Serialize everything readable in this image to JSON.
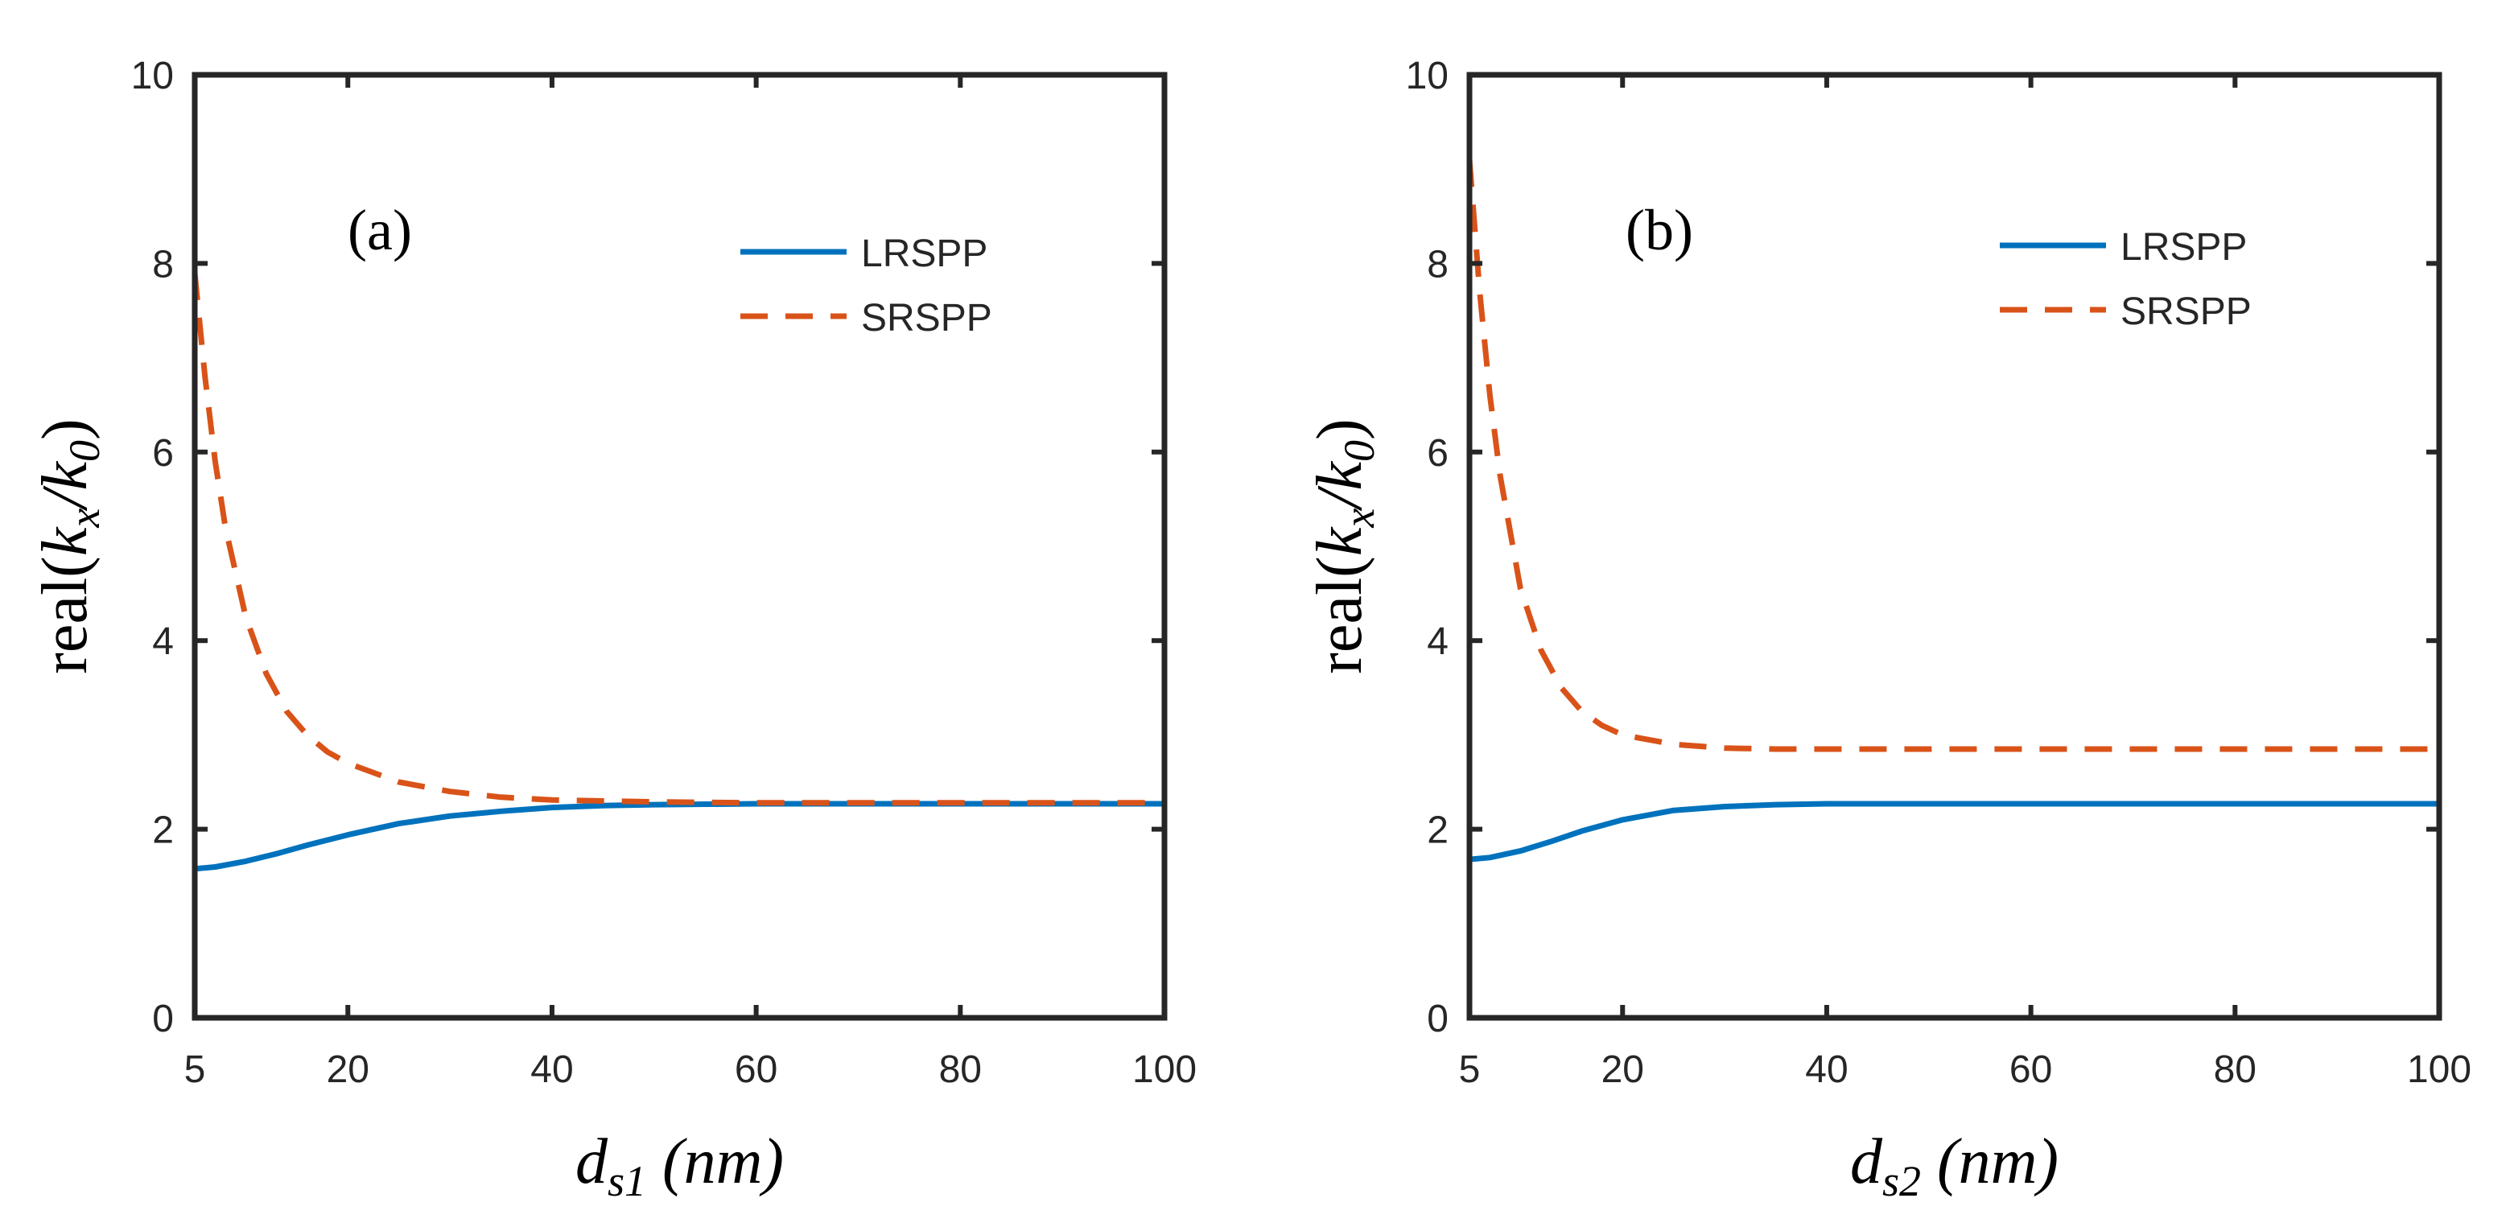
{
  "chart_data": [
    {
      "type": "line",
      "panel_label": "(a)",
      "xlabel": {
        "base": "d",
        "sub": "s1",
        "units": "(nm)"
      },
      "ylabel": {
        "prefix": "real(",
        "num": "k",
        "num_sub": "x",
        "slash": "/",
        "den": "k",
        "den_sub": "0",
        "suffix": ")"
      },
      "xlim": [
        5,
        100
      ],
      "ylim": [
        0,
        10
      ],
      "xticks": [
        5,
        20,
        40,
        60,
        80,
        100
      ],
      "yticks": [
        0,
        2,
        4,
        6,
        8,
        10
      ],
      "legend_position": "top-right",
      "series": [
        {
          "name": "LRSPP",
          "color": "#0072BD",
          "style": "solid",
          "x": [
            5,
            7,
            10,
            13,
            16,
            20,
            25,
            30,
            35,
            40,
            45,
            50,
            60,
            70,
            80,
            90,
            100
          ],
          "y": [
            1.58,
            1.6,
            1.66,
            1.74,
            1.83,
            1.94,
            2.06,
            2.14,
            2.19,
            2.23,
            2.25,
            2.26,
            2.27,
            2.27,
            2.27,
            2.27,
            2.27
          ]
        },
        {
          "name": "SRSPP",
          "color": "#D95319",
          "style": "dashed",
          "x": [
            5,
            6,
            7,
            8,
            10,
            12,
            14,
            16,
            18,
            20,
            25,
            30,
            35,
            40,
            50,
            60,
            70,
            80,
            90,
            100
          ],
          "y": [
            7.9,
            6.8,
            5.9,
            5.2,
            4.25,
            3.65,
            3.25,
            3.0,
            2.82,
            2.7,
            2.5,
            2.4,
            2.34,
            2.31,
            2.29,
            2.28,
            2.28,
            2.28,
            2.28,
            2.28
          ]
        }
      ]
    },
    {
      "type": "line",
      "panel_label": "(b)",
      "xlabel": {
        "base": "d",
        "sub": "s2",
        "units": "(nm)"
      },
      "ylabel": {
        "prefix": "real(",
        "num": "k",
        "num_sub": "x",
        "slash": "/",
        "den": "k",
        "den_sub": "0",
        "suffix": ")"
      },
      "xlim": [
        5,
        100
      ],
      "ylim": [
        0,
        10
      ],
      "xticks": [
        5,
        20,
        40,
        60,
        80,
        100
      ],
      "yticks": [
        0,
        2,
        4,
        6,
        8,
        10
      ],
      "legend_position": "top-right",
      "series": [
        {
          "name": "LRSPP",
          "color": "#0072BD",
          "style": "solid",
          "x": [
            5,
            7,
            10,
            13,
            16,
            20,
            25,
            30,
            35,
            40,
            50,
            60,
            70,
            80,
            90,
            100
          ],
          "y": [
            1.68,
            1.7,
            1.77,
            1.87,
            1.98,
            2.1,
            2.2,
            2.24,
            2.26,
            2.27,
            2.27,
            2.27,
            2.27,
            2.27,
            2.27,
            2.27
          ]
        },
        {
          "name": "SRSPP",
          "color": "#D95319",
          "style": "dashed",
          "x": [
            5,
            6,
            7,
            8,
            10,
            12,
            14,
            16,
            18,
            20,
            25,
            30,
            35,
            40,
            50,
            60,
            70,
            80,
            90,
            100
          ],
          "y": [
            9.1,
            7.7,
            6.6,
            5.75,
            4.55,
            3.9,
            3.5,
            3.25,
            3.1,
            3.0,
            2.9,
            2.86,
            2.85,
            2.85,
            2.85,
            2.85,
            2.85,
            2.85,
            2.85,
            2.85
          ]
        }
      ]
    }
  ]
}
